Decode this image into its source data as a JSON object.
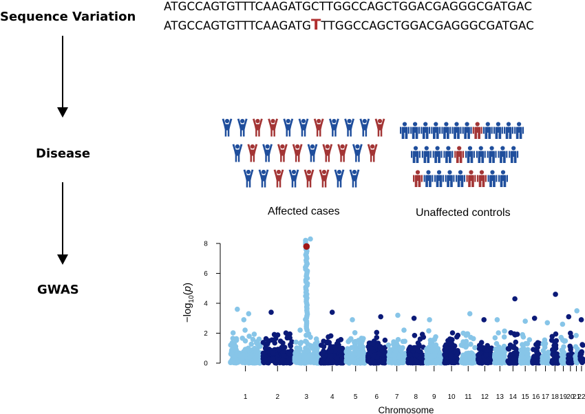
{
  "flow": {
    "sequence_label": "Sequence Variation",
    "disease_label": "Disease",
    "gwas_label": "GWAS"
  },
  "sequence": {
    "reference": "ATGCCAGTGTTTCAAGATGCTTGGCCAGCTGGACGAGGGCGATGAC",
    "variant_prefix": "ATGCCAGTGTTTCAAGATG",
    "variant_base": "T",
    "variant_suffix": "TTGGCCAGCTGGACGAGGGCGATGAC"
  },
  "populations": {
    "cases_label": "Affected cases",
    "controls_label": "Unaffected controls",
    "colors": {
      "unaffected": "#1f4e9c",
      "affected": "#a33535"
    },
    "cases_rows": [
      [
        0,
        0,
        1,
        1,
        0,
        0,
        1,
        0,
        0,
        0,
        1
      ],
      [
        0,
        1,
        0,
        1,
        1,
        0,
        1,
        1,
        0,
        1
      ],
      [
        0,
        0,
        1,
        0,
        1,
        1,
        0,
        0
      ]
    ],
    "controls_rows": [
      [
        0,
        0,
        0,
        0,
        0,
        0,
        0,
        1,
        0,
        0,
        0,
        0
      ],
      [
        0,
        0,
        0,
        0,
        1,
        0,
        0,
        0,
        0,
        0
      ],
      [
        1,
        0,
        0,
        0,
        0,
        1,
        1,
        0,
        0
      ]
    ]
  },
  "chart_data": {
    "type": "scatter",
    "subtype": "manhattan",
    "xlabel": "Chromosome",
    "ylabel": "−log10(p)",
    "ylim": [
      0,
      8
    ],
    "yticks": [
      0,
      2,
      4,
      6,
      8
    ],
    "colors": {
      "light": "#87c5e8",
      "dark": "#0b1a78",
      "highlight": "#a01616"
    },
    "chromosomes": [
      "1",
      "2",
      "3",
      "4",
      "5",
      "6",
      "7",
      "8",
      "9",
      "10",
      "11",
      "12",
      "13",
      "14",
      "15",
      "16",
      "17",
      "18",
      "19",
      "20",
      "21",
      "22"
    ],
    "chromosome_spans": [
      [
        0,
        41
      ],
      [
        41,
        81
      ],
      [
        81,
        114
      ],
      [
        114,
        146
      ],
      [
        146,
        173
      ],
      [
        173,
        199
      ],
      [
        199,
        224
      ],
      [
        224,
        247
      ],
      [
        247,
        270
      ],
      [
        270,
        291
      ],
      [
        291,
        312
      ],
      [
        312,
        333
      ],
      [
        333,
        350
      ],
      [
        350,
        366
      ],
      [
        366,
        381
      ],
      [
        381,
        393
      ],
      [
        393,
        405
      ],
      [
        405,
        417
      ],
      [
        417,
        426
      ],
      [
        426,
        435
      ],
      [
        435,
        441
      ],
      [
        441,
        448
      ]
    ],
    "highlighted_snp": {
      "chromosome": "3",
      "y": 7.8
    },
    "notable_points": [
      {
        "chromosome": "1",
        "y": 3.6
      },
      {
        "chromosome": "1",
        "y": 3.3
      },
      {
        "chromosome": "1",
        "y": 2.9
      },
      {
        "chromosome": "2",
        "y": 3.4
      },
      {
        "chromosome": "3",
        "y": 8.3
      },
      {
        "chromosome": "4",
        "y": 3.4
      },
      {
        "chromosome": "5",
        "y": 2.9
      },
      {
        "chromosome": "6",
        "y": 3.1
      },
      {
        "chromosome": "7",
        "y": 3.2
      },
      {
        "chromosome": "8",
        "y": 3.0
      },
      {
        "chromosome": "9",
        "y": 2.9
      },
      {
        "chromosome": "11",
        "y": 3.3
      },
      {
        "chromosome": "12",
        "y": 2.9
      },
      {
        "chromosome": "13",
        "y": 2.9
      },
      {
        "chromosome": "14",
        "y": 4.3
      },
      {
        "chromosome": "15",
        "y": 2.8
      },
      {
        "chromosome": "16",
        "y": 3.0
      },
      {
        "chromosome": "17",
        "y": 2.7
      },
      {
        "chromosome": "18",
        "y": 4.6
      },
      {
        "chromosome": "19",
        "y": 2.6
      },
      {
        "chromosome": "20",
        "y": 3.1
      },
      {
        "chromosome": "21",
        "y": 3.5
      },
      {
        "chromosome": "22",
        "y": 2.9
      }
    ]
  }
}
